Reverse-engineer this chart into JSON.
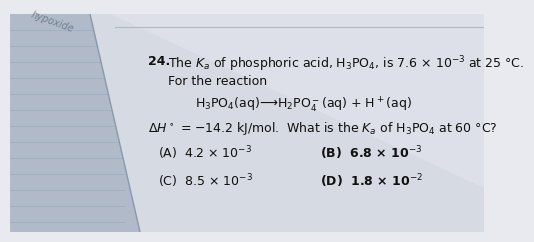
{
  "bg_color_right": "#e8eaf0",
  "bg_color_left": "#b8c0cc",
  "text_color": "#111111",
  "question_num": "24.",
  "line1": "The $K_a$ of phosphoric acid, H$_3$PO$_4$, is 7.6 × 10$^{-3}$ at 25 °C.",
  "line2": "For the reaction",
  "reaction": "H$_3$PO$_4$(aq)⟶H$_2$PO$_4^-$(aq) + H$^+$(aq)",
  "line3": "$\\Delta H^\\circ$ = −14.2 kJ/mol.  What is the $K_a$ of H$_3$PO$_4$ at 60 °C?",
  "optA": "(A)  4.2 × 10$^{-3}$",
  "optB": "(B)  6.8 × 10$^{-3}$",
  "optC": "(C)  8.5 × 10$^{-3}$",
  "optD": "(D)  1.8 × 10$^{-2}$",
  "font_size_main": 9.0,
  "font_size_opts": 9.0,
  "line_color": "#8899aa",
  "notebook_line_color": "#99aabb"
}
